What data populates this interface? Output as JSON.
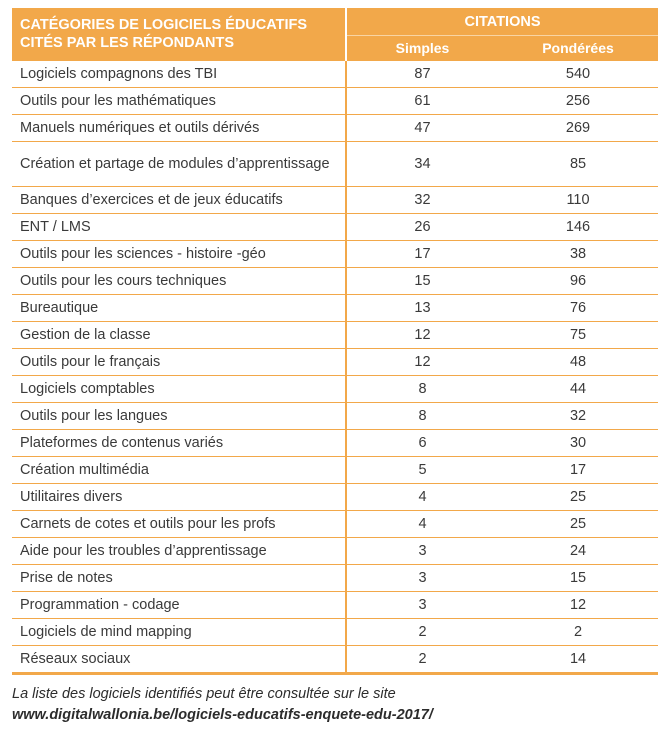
{
  "header": {
    "category_title": "CATÉGORIES DE LOGICIELS ÉDUCATIFS CITÉS PAR LES RÉPONDANTS",
    "citations": "CITATIONS",
    "simple": "Simples",
    "weighted": "Pondérées"
  },
  "rows": [
    {
      "label": "Logiciels compagnons des TBI",
      "simple": "87",
      "weighted": "540"
    },
    {
      "label": "Outils pour les mathématiques",
      "simple": "61",
      "weighted": "256"
    },
    {
      "label": "Manuels numériques et outils dérivés",
      "simple": "47",
      "weighted": "269"
    },
    {
      "label": "Création et partage de modules d’apprentissage",
      "simple": "34",
      "weighted": "85"
    },
    {
      "label": "Banques d’exercices et de jeux éducatifs",
      "simple": "32",
      "weighted": "110"
    },
    {
      "label": "ENT / LMS",
      "simple": "26",
      "weighted": "146"
    },
    {
      "label": "Outils pour les sciences - histoire -géo",
      "simple": "17",
      "weighted": "38"
    },
    {
      "label": "Outils pour les cours techniques",
      "simple": "15",
      "weighted": "96"
    },
    {
      "label": "Bureautique",
      "simple": "13",
      "weighted": "76"
    },
    {
      "label": "Gestion de la classe",
      "simple": "12",
      "weighted": "75"
    },
    {
      "label": "Outils pour le français",
      "simple": "12",
      "weighted": "48"
    },
    {
      "label": "Logiciels comptables",
      "simple": "8",
      "weighted": "44"
    },
    {
      "label": "Outils pour les langues",
      "simple": "8",
      "weighted": "32"
    },
    {
      "label": "Plateformes de contenus variés",
      "simple": "6",
      "weighted": "30"
    },
    {
      "label": "Création multimédia",
      "simple": "5",
      "weighted": "17"
    },
    {
      "label": "Utilitaires divers",
      "simple": "4",
      "weighted": "25"
    },
    {
      "label": "Carnets de cotes et outils pour les profs",
      "simple": "4",
      "weighted": "25"
    },
    {
      "label": "Aide pour les troubles d’apprentissage",
      "simple": "3",
      "weighted": "24"
    },
    {
      "label": "Prise de notes",
      "simple": "3",
      "weighted": "15"
    },
    {
      "label": "Programmation - codage",
      "simple": "3",
      "weighted": "12"
    },
    {
      "label": "Logiciels de mind mapping",
      "simple": "2",
      "weighted": "2"
    },
    {
      "label": "Réseaux sociaux",
      "simple": "2",
      "weighted": "14"
    }
  ],
  "footnote": {
    "text": "La liste des logiciels identifiés peut être consultée sur le site",
    "url": "www.digitalwallonia.be/logiciels-educatifs-enquete-edu-2017/"
  },
  "colors": {
    "accent": "#f2a84a",
    "text": "#3a3a3a"
  }
}
